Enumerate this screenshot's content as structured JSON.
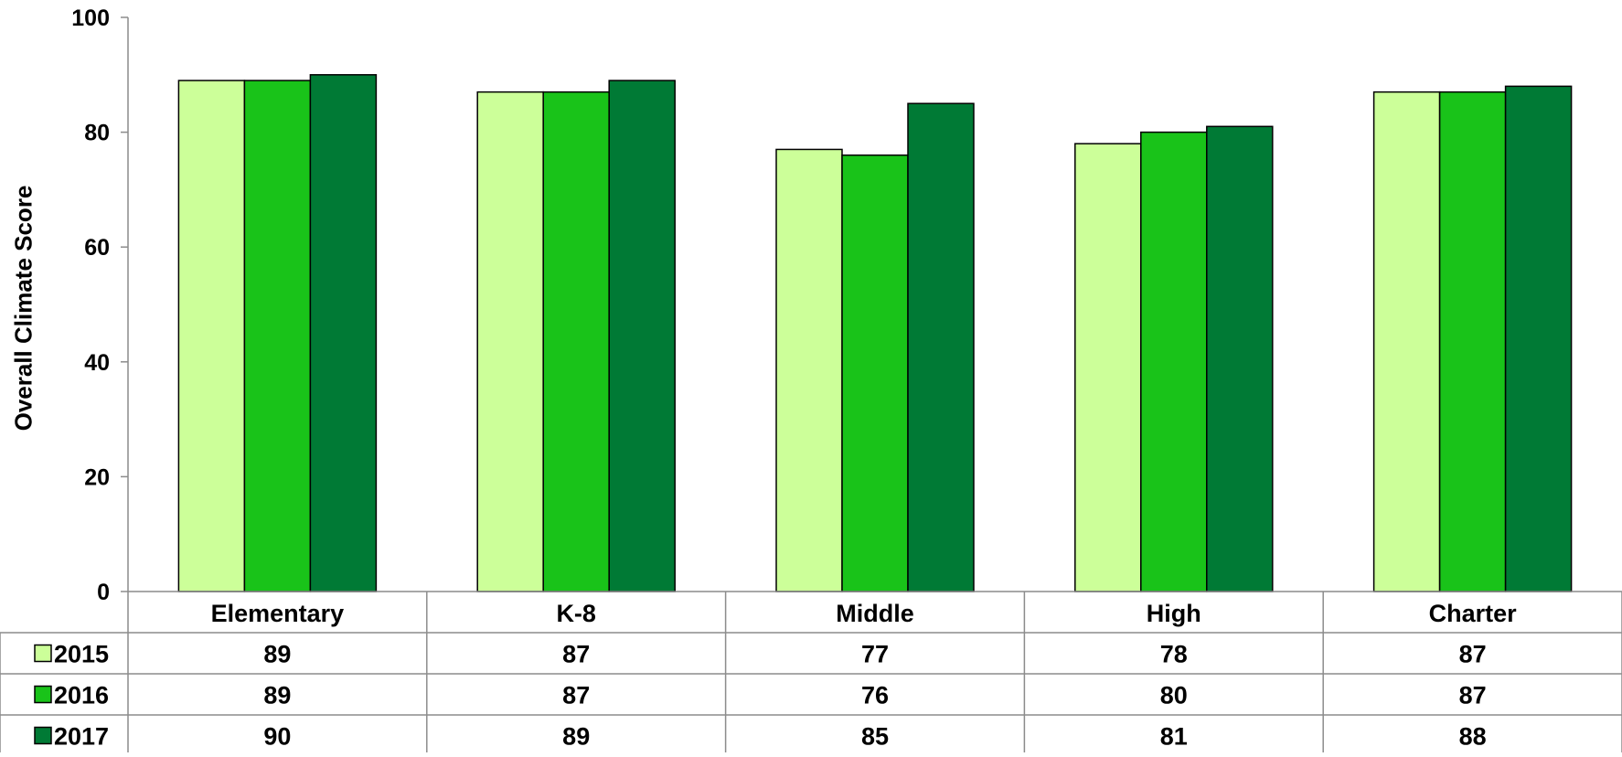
{
  "chart_data": {
    "type": "bar",
    "ylabel": "Overall Climate Score",
    "ylim": [
      0,
      100
    ],
    "yticks": [
      0,
      20,
      40,
      60,
      80,
      100
    ],
    "grid": false,
    "legend": "data-table-below",
    "categories": [
      "Elementary",
      "K-8",
      "Middle",
      "High",
      "Charter"
    ],
    "series": [
      {
        "name": "2015",
        "color": "#ccff99",
        "values": [
          89,
          87,
          77,
          78,
          87
        ]
      },
      {
        "name": "2016",
        "color": "#19c319",
        "values": [
          89,
          87,
          76,
          80,
          87
        ]
      },
      {
        "name": "2017",
        "color": "#007a35",
        "values": [
          90,
          89,
          85,
          81,
          88
        ]
      }
    ]
  }
}
